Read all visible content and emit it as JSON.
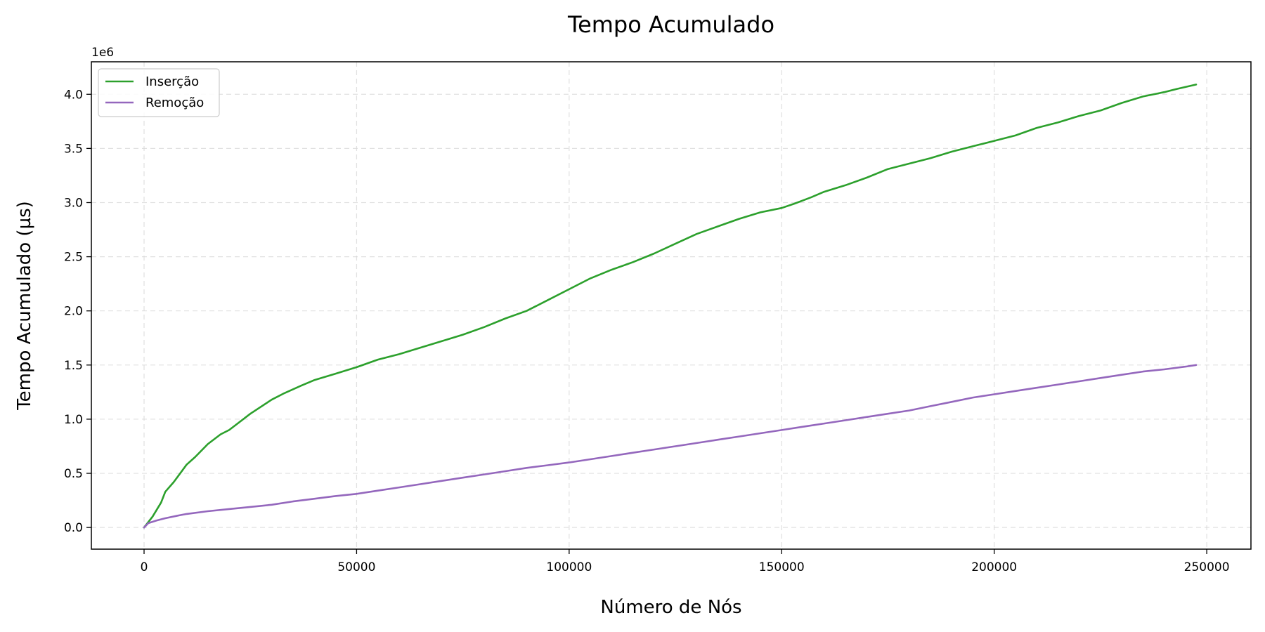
{
  "chart_data": {
    "type": "line",
    "title": "Tempo Acumulado",
    "xlabel": "Número de Nós",
    "ylabel": "Tempo Acumulado (µs)",
    "y_offset_label": "1e6",
    "xlim": [
      -12400,
      260400
    ],
    "ylim": [
      -200000,
      4300000
    ],
    "x_ticks": [
      0,
      50000,
      100000,
      150000,
      200000,
      250000
    ],
    "x_tick_labels": [
      "0",
      "50000",
      "100000",
      "150000",
      "200000",
      "250000"
    ],
    "y_ticks": [
      0,
      500000,
      1000000,
      1500000,
      2000000,
      2500000,
      3000000,
      3500000,
      4000000
    ],
    "y_tick_labels": [
      "0.0",
      "0.5",
      "1.0",
      "1.5",
      "2.0",
      "2.5",
      "3.0",
      "3.5",
      "4.0"
    ],
    "grid": true,
    "legend_position": "top-left",
    "series": [
      {
        "name": "Inserção",
        "color": "#2ca02c",
        "x": [
          0,
          2000,
          4000,
          5000,
          7000,
          10000,
          12000,
          15000,
          18000,
          20000,
          22000,
          25000,
          30000,
          33000,
          37000,
          40000,
          45000,
          50000,
          55000,
          60000,
          65000,
          70000,
          75000,
          80000,
          85000,
          90000,
          95000,
          100000,
          105000,
          110000,
          115000,
          120000,
          125000,
          130000,
          135000,
          140000,
          145000,
          150000,
          153000,
          157000,
          160000,
          165000,
          170000,
          175000,
          180000,
          185000,
          190000,
          195000,
          200000,
          205000,
          210000,
          215000,
          220000,
          225000,
          230000,
          235000,
          240000,
          243000,
          247500
        ],
        "y": [
          0,
          100000,
          230000,
          330000,
          420000,
          580000,
          650000,
          770000,
          860000,
          900000,
          960000,
          1050000,
          1180000,
          1240000,
          1310000,
          1360000,
          1420000,
          1480000,
          1550000,
          1600000,
          1660000,
          1720000,
          1780000,
          1850000,
          1930000,
          2000000,
          2100000,
          2200000,
          2300000,
          2380000,
          2450000,
          2530000,
          2620000,
          2710000,
          2780000,
          2850000,
          2910000,
          2950000,
          2990000,
          3050000,
          3100000,
          3160000,
          3230000,
          3310000,
          3360000,
          3410000,
          3470000,
          3520000,
          3570000,
          3620000,
          3690000,
          3740000,
          3800000,
          3850000,
          3920000,
          3980000,
          4020000,
          4050000,
          4090000
        ]
      },
      {
        "name": "Remoção",
        "color": "#9467bd",
        "x": [
          0,
          1000,
          3000,
          5000,
          8000,
          10000,
          15000,
          20000,
          25000,
          30000,
          35000,
          40000,
          45000,
          50000,
          55000,
          60000,
          65000,
          70000,
          75000,
          80000,
          85000,
          90000,
          95000,
          100000,
          105000,
          110000,
          115000,
          120000,
          125000,
          130000,
          135000,
          140000,
          145000,
          150000,
          155000,
          160000,
          165000,
          170000,
          175000,
          180000,
          185000,
          190000,
          195000,
          200000,
          205000,
          210000,
          215000,
          220000,
          225000,
          230000,
          235000,
          240000,
          245000,
          247500
        ],
        "y": [
          0,
          40000,
          65000,
          85000,
          110000,
          125000,
          150000,
          170000,
          190000,
          210000,
          240000,
          265000,
          290000,
          310000,
          340000,
          370000,
          400000,
          430000,
          460000,
          490000,
          520000,
          550000,
          575000,
          600000,
          630000,
          660000,
          690000,
          720000,
          750000,
          780000,
          810000,
          840000,
          870000,
          900000,
          930000,
          960000,
          990000,
          1020000,
          1050000,
          1080000,
          1120000,
          1160000,
          1200000,
          1230000,
          1260000,
          1290000,
          1320000,
          1350000,
          1380000,
          1410000,
          1440000,
          1460000,
          1485000,
          1500000
        ]
      }
    ]
  }
}
